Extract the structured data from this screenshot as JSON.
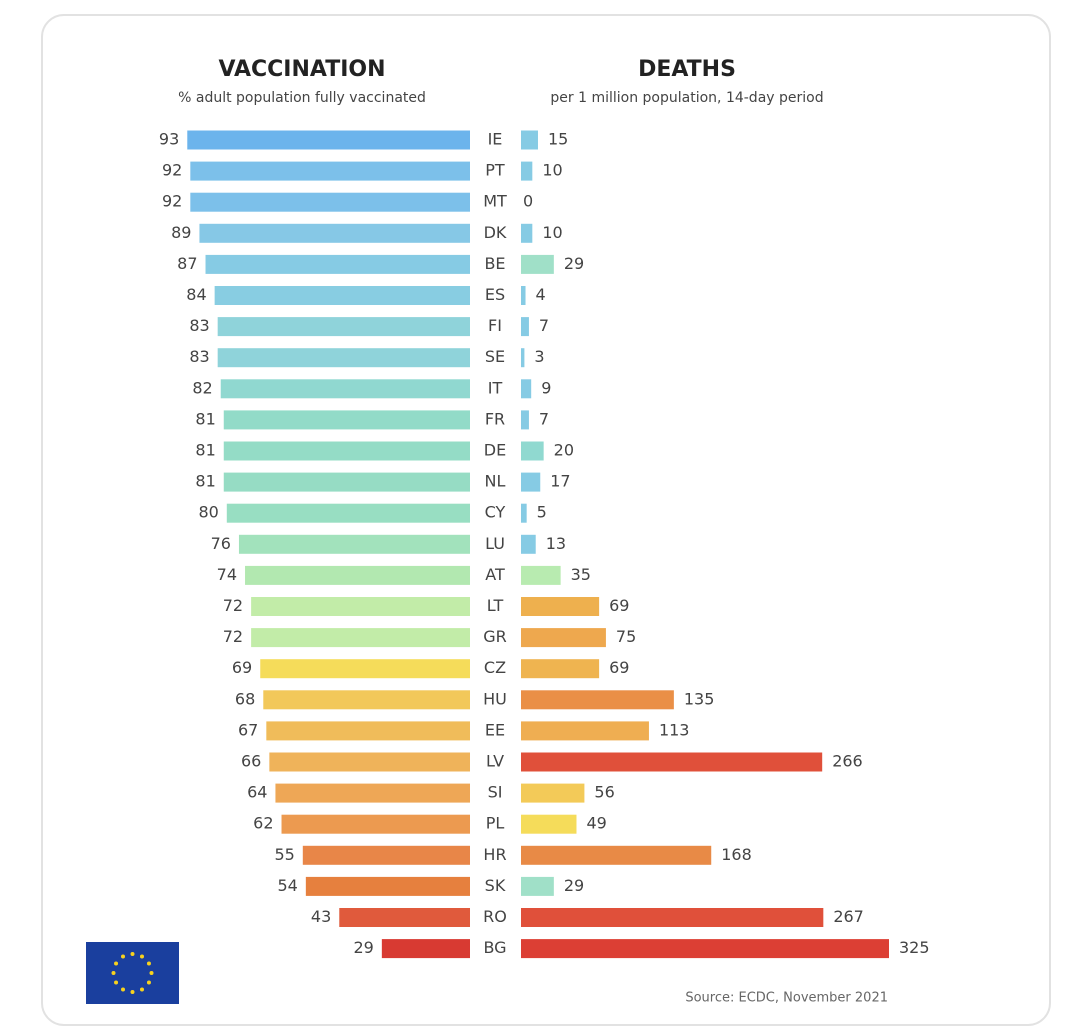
{
  "chart_data": {
    "type": "butterfly",
    "categories": [
      "IE",
      "PT",
      "MT",
      "DK",
      "BE",
      "ES",
      "FI",
      "SE",
      "IT",
      "FR",
      "DE",
      "NL",
      "CY",
      "LU",
      "AT",
      "LT",
      "GR",
      "CZ",
      "HU",
      "EE",
      "LV",
      "SI",
      "PL",
      "HR",
      "SK",
      "RO",
      "BG"
    ],
    "series": [
      {
        "name": "VACCINATION",
        "subtitle": "% adult population fully vaccinated",
        "side": "left",
        "xlim": [
          0,
          100
        ],
        "values": [
          93,
          92,
          92,
          89,
          87,
          84,
          83,
          83,
          82,
          81,
          81,
          81,
          80,
          76,
          74,
          72,
          72,
          69,
          68,
          67,
          66,
          64,
          62,
          55,
          54,
          43,
          29
        ],
        "colors": [
          "#6cb4ec",
          "#7cc0ea",
          "#7cc0ea",
          "#86c8e6",
          "#86cbe4",
          "#88cde2",
          "#8fd3da",
          "#8fd3da",
          "#90d8d0",
          "#92dbc8",
          "#94dcc6",
          "#96dcc4",
          "#98dec2",
          "#a2e2bc",
          "#b2e8b0",
          "#c2eca8",
          "#c2eca8",
          "#f5dc5a",
          "#f2c85a",
          "#f0bc5a",
          "#efb35a",
          "#eea756",
          "#ec9a50",
          "#e88648",
          "#e6803e",
          "#e05a3c",
          "#d83a32"
        ]
      },
      {
        "name": "DEATHS",
        "subtitle": "per 1 million population, 14-day period",
        "side": "right",
        "xlim": [
          0,
          325
        ],
        "values": [
          15,
          10,
          0,
          10,
          29,
          4,
          7,
          3,
          9,
          7,
          20,
          17,
          5,
          13,
          35,
          69,
          75,
          69,
          135,
          113,
          266,
          56,
          49,
          168,
          29,
          267,
          325
        ],
        "colors": [
          "#86cbe4",
          "#86cbe4",
          "#86cbe4",
          "#86cbe4",
          "#a0e0c8",
          "#86cbe4",
          "#86cbe4",
          "#86cbe4",
          "#86cbe4",
          "#86cbe4",
          "#90d9d0",
          "#86cbe4",
          "#86cbe4",
          "#86cbe4",
          "#b8ebb0",
          "#eeb04e",
          "#eea84e",
          "#efb450",
          "#ea8f46",
          "#efae52",
          "#e0503a",
          "#f3ca58",
          "#f5dc5a",
          "#e88a46",
          "#a0e0c8",
          "#e0503a",
          "#dc3f34"
        ]
      }
    ],
    "source": "Source: ECDC, November 2021"
  }
}
